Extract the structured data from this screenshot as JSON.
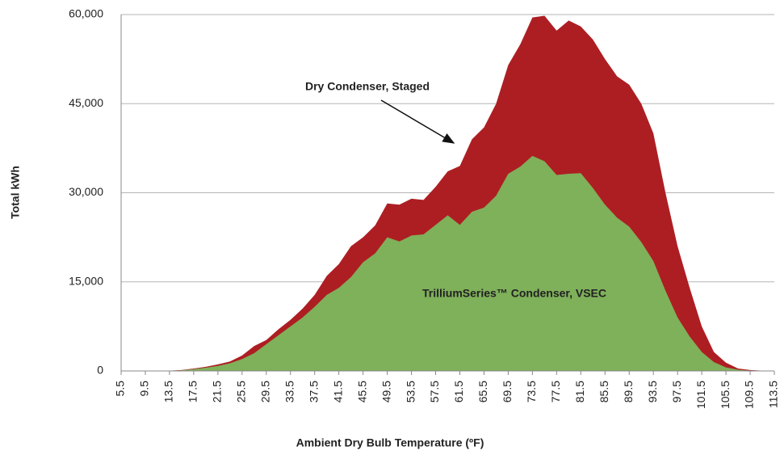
{
  "chart_data": {
    "type": "area",
    "x_label": "Ambient Dry Bulb Temperature (ºF)",
    "y_label": "Total kWh",
    "x": [
      5.5,
      7.5,
      9.5,
      11.5,
      13.5,
      15.5,
      17.5,
      19.5,
      21.5,
      23.5,
      25.5,
      27.5,
      29.5,
      31.5,
      33.5,
      35.5,
      37.5,
      39.5,
      41.5,
      43.5,
      45.5,
      47.5,
      49.5,
      51.5,
      53.5,
      55.5,
      57.5,
      59.5,
      61.5,
      63.5,
      65.5,
      67.5,
      69.5,
      71.5,
      73.5,
      75.5,
      77.5,
      79.5,
      81.5,
      83.5,
      85.5,
      87.5,
      89.5,
      91.5,
      93.5,
      95.5,
      97.5,
      99.5,
      101.5,
      103.5,
      105.5,
      107.5,
      109.5,
      111.5,
      113.5
    ],
    "series": [
      {
        "name": "Dry Condenser, Staged",
        "color": "#ad1e23",
        "values": [
          0,
          0,
          0,
          0,
          50,
          150,
          400,
          700,
          1100,
          1600,
          2600,
          4200,
          5200,
          7000,
          8600,
          10500,
          12800,
          16000,
          18000,
          21000,
          22500,
          24500,
          28200,
          28000,
          29000,
          28800,
          31000,
          33600,
          34500,
          39000,
          41000,
          45000,
          51500,
          55000,
          59500,
          59800,
          57300,
          59000,
          58000,
          55800,
          52500,
          49600,
          48200,
          45000,
          40000,
          30000,
          21000,
          14000,
          7500,
          3200,
          1400,
          400,
          150,
          50,
          0
        ]
      },
      {
        "name": "TrilliumSeries™ Condenser, VSEC",
        "color": "#7fb05a",
        "values": [
          0,
          0,
          0,
          0,
          30,
          100,
          300,
          550,
          850,
          1300,
          2000,
          3000,
          4500,
          6000,
          7500,
          9000,
          10800,
          12800,
          14000,
          15800,
          18300,
          19800,
          22500,
          21800,
          22800,
          23000,
          24600,
          26200,
          24600,
          26800,
          27500,
          29500,
          33200,
          34400,
          36200,
          35300,
          33000,
          33200,
          33300,
          30800,
          28000,
          25800,
          24300,
          21700,
          18500,
          13500,
          9000,
          5800,
          3200,
          1500,
          600,
          200,
          50,
          0,
          0
        ]
      }
    ],
    "xlim": [
      5.5,
      113.5
    ],
    "xticks": [
      5.5,
      9.5,
      13.5,
      17.5,
      21.5,
      25.5,
      29.5,
      33.5,
      37.5,
      41.5,
      45.5,
      49.5,
      53.5,
      57.5,
      61.5,
      65.5,
      69.5,
      73.5,
      77.5,
      81.5,
      85.5,
      89.5,
      93.5,
      97.5,
      101.5,
      105.5,
      109.5,
      113.5
    ],
    "ylim": [
      0,
      60000
    ],
    "yticks": [
      0,
      {
        "value": 15000,
        "label": "15,000"
      },
      {
        "value": 30000,
        "label": "30,000"
      },
      {
        "value": 45000,
        "label": "45,000"
      },
      {
        "value": 60000,
        "label": "60,000"
      }
    ],
    "grid": true
  }
}
